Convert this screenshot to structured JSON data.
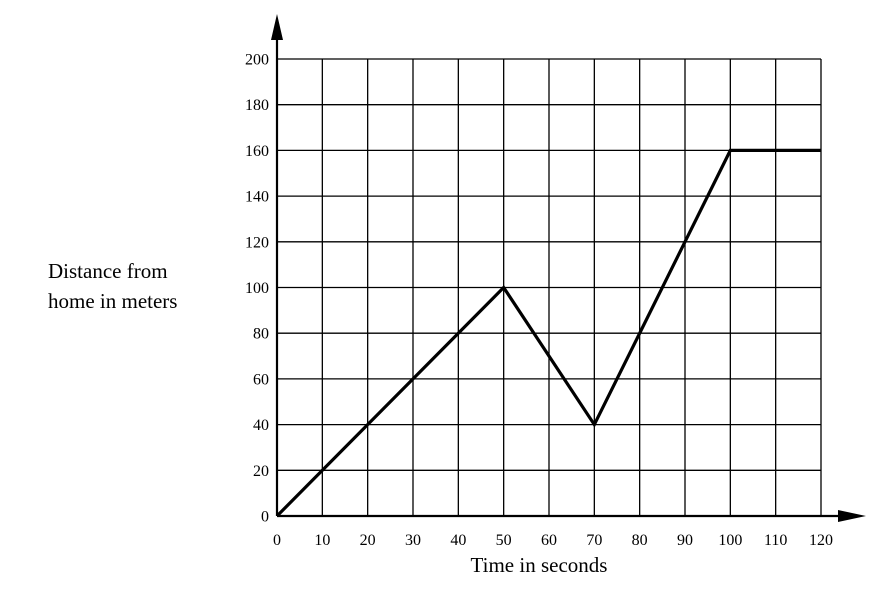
{
  "chart_data": {
    "type": "line",
    "xlabel": "Time in seconds",
    "ylabel_lines": [
      "Distance from",
      "home in meters"
    ],
    "xlim": [
      0,
      120
    ],
    "ylim": [
      0,
      200
    ],
    "x_ticks": [
      "0",
      "10",
      "20",
      "30",
      "40",
      "50",
      "60",
      "70",
      "80",
      "90",
      "100",
      "110",
      "120"
    ],
    "y_ticks": [
      "0",
      "20",
      "40",
      "60",
      "80",
      "100",
      "120",
      "140",
      "160",
      "180",
      "200"
    ],
    "grid": true,
    "series": [
      {
        "x": [
          0,
          50,
          70,
          100,
          120
        ],
        "y": [
          0,
          100,
          40,
          160,
          160
        ]
      }
    ]
  }
}
